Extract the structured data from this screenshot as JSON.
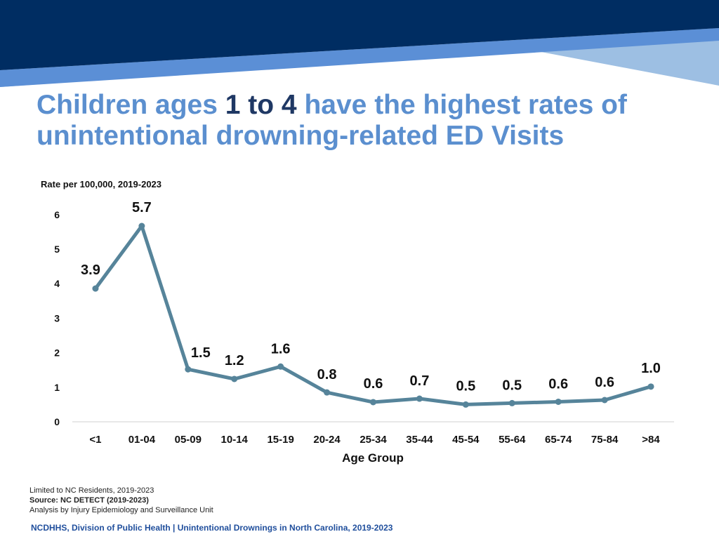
{
  "theme": {
    "banner_dark": "#002d62",
    "banner_mid": "#5b8fd6",
    "banner_light": "#9dbfe3",
    "title_color": "#5b8fcf",
    "title_accent": "#1f3864",
    "line_color": "#56849a"
  },
  "title": {
    "part1": "Children ages ",
    "num1": "1",
    "to": " to ",
    "num2": "4",
    "part2": " have the highest rates of unintentional drowning-related ED Visits"
  },
  "chart_data": {
    "type": "line",
    "ylabel": "Rate per 100,000, 2019-2023",
    "xlabel": "Age Group",
    "categories": [
      "<1",
      "01-04",
      "05-09",
      "10-14",
      "15-19",
      "20-24",
      "25-34",
      "35-44",
      "45-54",
      "55-64",
      "65-74",
      "75-84",
      ">84"
    ],
    "values": [
      3.86,
      5.67,
      1.52,
      1.24,
      1.6,
      0.85,
      0.57,
      0.67,
      0.5,
      0.54,
      0.58,
      0.63,
      1.02
    ],
    "data_labels": [
      "3.9",
      "5.7",
      "1.5",
      "1.2",
      "1.6",
      "0.8",
      "0.6",
      "0.7",
      "0.5",
      "0.5",
      "0.6",
      "0.6",
      "1.0"
    ],
    "yticks": [
      0,
      1,
      2,
      3,
      4,
      5,
      6
    ],
    "ylim": [
      0,
      6.2
    ],
    "grid": false,
    "legend": "none"
  },
  "footnotes": {
    "line1": "Limited to NC Residents, 2019-2023",
    "line2": "Source: NC DETECT (2019-2023)",
    "line3": "Analysis by Injury Epidemiology and Surveillance Unit"
  },
  "footer": "NCDHHS, Division of Public Health | Unintentional Drownings in North Carolina, 2019-2023"
}
